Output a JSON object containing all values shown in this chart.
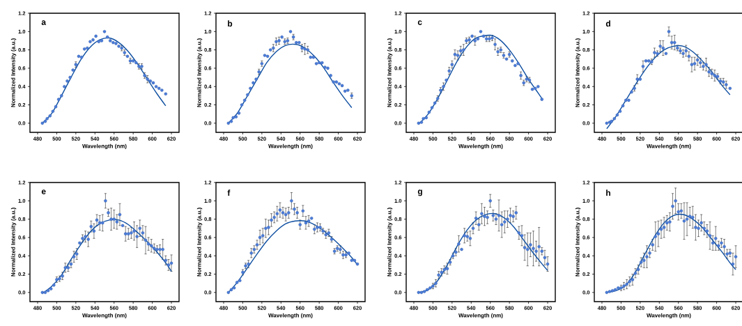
{
  "chart_data": [
    {
      "type": "scatter",
      "title": "a",
      "xlabel": "Wavelength (nm)",
      "ylabel": "Normalized Intensity (a.u.)",
      "marker": "circle",
      "xlim": [
        472,
        628
      ],
      "ylim": [
        -0.1,
        1.2
      ],
      "xticks": [
        480,
        500,
        520,
        540,
        560,
        580,
        600,
        620
      ],
      "yticks": [
        {
          "value": 0,
          "label": "0.0"
        },
        {
          "value": 0.2,
          "label": "0.2"
        },
        {
          "value": 0.4,
          "label": "0.4"
        },
        {
          "value": 0.6,
          "label": "0.6"
        },
        {
          "value": 0.8,
          "label": "0.8"
        },
        {
          "value": 1.0,
          "label": "1.0"
        },
        {
          "value": 1.2,
          "label": "1.2"
        }
      ],
      "x": [
        485,
        488,
        490,
        493,
        496,
        499,
        502,
        505,
        508,
        511,
        514,
        517,
        520,
        523,
        526,
        529,
        532,
        535,
        538,
        541,
        544,
        547,
        550,
        553,
        556,
        559,
        562,
        565,
        568,
        571,
        574,
        577,
        580,
        583,
        586,
        589,
        592,
        595,
        598,
        601,
        604,
        607,
        610,
        614
      ],
      "series": [
        {
          "color": "#4a7bd8",
          "values": [
            0.0,
            0.02,
            0.05,
            0.08,
            0.13,
            0.18,
            0.26,
            0.3,
            0.4,
            0.46,
            0.5,
            0.58,
            0.64,
            0.73,
            0.72,
            0.81,
            0.82,
            0.89,
            0.91,
            0.95,
            0.89,
            0.9,
            1.0,
            0.94,
            0.9,
            0.88,
            0.87,
            0.84,
            0.82,
            0.77,
            0.73,
            0.68,
            0.68,
            0.66,
            0.62,
            0.62,
            0.52,
            0.48,
            0.46,
            0.44,
            0.4,
            0.38,
            0.36,
            0.32
          ],
          "errors": [
            null,
            null,
            null,
            null,
            null,
            null,
            null,
            null,
            null,
            null,
            null,
            null,
            0.03,
            null,
            null,
            null,
            null,
            null,
            null,
            null,
            null,
            null,
            null,
            null,
            null,
            null,
            null,
            null,
            0.03,
            0.03,
            null,
            0.03,
            null,
            null,
            0.03,
            0.03,
            0.03,
            0.04,
            null,
            null,
            null,
            null,
            null,
            null
          ]
        },
        {
          "type": "line",
          "color": "#0d4ea0",
          "marker": "none",
          "x": [
            485,
            495,
            505,
            515,
            525,
            535,
            545,
            555,
            565,
            575,
            585,
            595,
            605,
            614
          ],
          "values": [
            0.0,
            0.11,
            0.3,
            0.5,
            0.69,
            0.83,
            0.91,
            0.93,
            0.88,
            0.78,
            0.64,
            0.48,
            0.32,
            0.19
          ]
        }
      ]
    },
    {
      "type": "scatter",
      "title": "b",
      "xlabel": "Wavelength (nm)",
      "ylabel": "Normalized Intensity (a.u.)",
      "marker": "circle",
      "xlim": [
        472,
        628
      ],
      "ylim": [
        -0.1,
        1.2
      ],
      "xticks": [
        480,
        500,
        520,
        540,
        560,
        580,
        600,
        620
      ],
      "yticks": [
        {
          "value": 0,
          "label": "0.0"
        },
        {
          "value": 0.2,
          "label": "0.2"
        },
        {
          "value": 0.4,
          "label": "0.4"
        },
        {
          "value": 0.6,
          "label": "0.6"
        },
        {
          "value": 0.8,
          "label": "0.8"
        },
        {
          "value": 1.0,
          "label": "1.0"
        },
        {
          "value": 1.2,
          "label": "1.2"
        }
      ],
      "x": [
        485,
        488,
        490,
        493,
        496,
        499,
        502,
        505,
        508,
        511,
        514,
        517,
        520,
        523,
        526,
        529,
        532,
        535,
        538,
        541,
        544,
        547,
        550,
        553,
        556,
        559,
        562,
        565,
        568,
        571,
        574,
        577,
        580,
        583,
        586,
        589,
        592,
        595,
        598,
        601,
        604,
        607,
        610,
        614
      ],
      "series": [
        {
          "color": "#4a7bd8",
          "values": [
            0.0,
            0.02,
            0.06,
            0.07,
            0.11,
            0.2,
            0.25,
            0.31,
            0.38,
            0.44,
            0.48,
            0.56,
            0.65,
            0.74,
            0.73,
            0.8,
            0.82,
            0.89,
            0.9,
            0.94,
            0.89,
            0.9,
            1.0,
            0.94,
            0.88,
            0.88,
            0.82,
            0.81,
            0.8,
            0.72,
            0.72,
            0.65,
            0.66,
            0.66,
            0.61,
            0.6,
            0.52,
            0.45,
            0.45,
            0.43,
            0.41,
            0.35,
            0.36,
            0.3
          ],
          "errors": [
            null,
            null,
            null,
            null,
            null,
            null,
            null,
            null,
            null,
            null,
            null,
            0.03,
            0.03,
            null,
            null,
            null,
            0.04,
            0.04,
            0.04,
            null,
            0.03,
            0.03,
            null,
            0.03,
            null,
            null,
            0.04,
            0.06,
            0.04,
            null,
            null,
            null,
            null,
            null,
            null,
            null,
            null,
            null,
            null,
            null,
            null,
            null,
            null,
            0.03
          ]
        },
        {
          "type": "line",
          "color": "#0d4ea0",
          "marker": "none",
          "x": [
            485,
            495,
            505,
            515,
            525,
            535,
            545,
            556,
            565,
            575,
            585,
            595,
            605,
            614
          ],
          "values": [
            0.0,
            0.12,
            0.3,
            0.48,
            0.66,
            0.78,
            0.85,
            0.86,
            0.82,
            0.73,
            0.6,
            0.44,
            0.29,
            0.17
          ]
        }
      ]
    },
    {
      "type": "scatter",
      "title": "c",
      "xlabel": "Wavelength (nm)",
      "ylabel": "Normalized Intensity (a.u.)",
      "marker": "circle",
      "xlim": [
        472,
        628
      ],
      "ylim": [
        -0.1,
        1.2
      ],
      "xticks": [
        480,
        500,
        520,
        540,
        560,
        580,
        600,
        620
      ],
      "yticks": [
        {
          "value": 0,
          "label": "0.0"
        },
        {
          "value": 0.2,
          "label": "0.2"
        },
        {
          "value": 0.4,
          "label": "0.4"
        },
        {
          "value": 0.6,
          "label": "0.6"
        },
        {
          "value": 0.8,
          "label": "0.8"
        },
        {
          "value": 1.0,
          "label": "1.0"
        },
        {
          "value": 1.2,
          "label": "1.2"
        }
      ],
      "x": [
        485,
        488,
        490,
        493,
        496,
        499,
        502,
        505,
        508,
        511,
        514,
        517,
        520,
        523,
        526,
        529,
        532,
        535,
        538,
        541,
        544,
        547,
        550,
        553,
        556,
        559,
        562,
        565,
        568,
        571,
        574,
        577,
        580,
        583,
        586,
        589,
        592,
        595,
        598,
        601,
        604,
        607,
        610,
        614
      ],
      "series": [
        {
          "color": "#4a7bd8",
          "values": [
            0.0,
            0.01,
            0.05,
            0.06,
            0.12,
            0.17,
            0.22,
            0.27,
            0.36,
            0.4,
            0.47,
            0.57,
            0.64,
            0.75,
            0.74,
            0.79,
            0.8,
            0.9,
            0.91,
            0.95,
            0.9,
            0.92,
            1.0,
            0.95,
            0.92,
            0.92,
            0.93,
            0.86,
            0.78,
            0.8,
            0.74,
            0.7,
            0.75,
            0.68,
            0.63,
            0.65,
            0.52,
            0.44,
            0.48,
            0.47,
            0.37,
            0.38,
            0.4,
            0.26
          ],
          "errors": [
            null,
            null,
            null,
            null,
            null,
            null,
            null,
            0.03,
            0.03,
            0.04,
            null,
            0.04,
            0.04,
            0.05,
            0.05,
            0.05,
            0.06,
            0.03,
            0.03,
            null,
            0.05,
            null,
            null,
            null,
            0.03,
            0.03,
            0.03,
            0.06,
            0.04,
            0.03,
            0.03,
            null,
            0.03,
            null,
            null,
            null,
            0.04,
            0.03,
            0.03,
            0.03,
            null,
            null,
            null,
            null
          ]
        },
        {
          "type": "line",
          "color": "#0d4ea0",
          "marker": "none",
          "x": [
            485,
            495,
            505,
            515,
            525,
            535,
            545,
            560,
            570,
            580,
            590,
            600,
            608,
            614
          ],
          "values": [
            -0.01,
            0.1,
            0.27,
            0.47,
            0.67,
            0.83,
            0.93,
            0.96,
            0.91,
            0.8,
            0.65,
            0.48,
            0.36,
            0.27
          ]
        }
      ]
    },
    {
      "type": "scatter",
      "title": "d",
      "xlabel": "Wavelength (nm)",
      "ylabel": "Normalized Intensity (a.u.)",
      "marker": "circle",
      "xlim": [
        472,
        628
      ],
      "ylim": [
        -0.1,
        1.2
      ],
      "xticks": [
        480,
        500,
        520,
        540,
        560,
        580,
        600,
        620
      ],
      "yticks": [
        {
          "value": 0,
          "label": "0.0"
        },
        {
          "value": 0.2,
          "label": "0.2"
        },
        {
          "value": 0.4,
          "label": "0.4"
        },
        {
          "value": 0.6,
          "label": "0.6"
        },
        {
          "value": 0.8,
          "label": "0.8"
        },
        {
          "value": 1.0,
          "label": "1.0"
        },
        {
          "value": 1.2,
          "label": "1.2"
        }
      ],
      "x": [
        485,
        488,
        490,
        493,
        496,
        499,
        502,
        505,
        508,
        511,
        514,
        517,
        520,
        523,
        526,
        529,
        532,
        535,
        538,
        541,
        544,
        547,
        550,
        553,
        556,
        559,
        562,
        565,
        568,
        571,
        574,
        577,
        580,
        583,
        586,
        589,
        592,
        595,
        598,
        601,
        604,
        607,
        610,
        614
      ],
      "series": [
        {
          "color": "#4a7bd8",
          "values": [
            0.0,
            0.01,
            0.02,
            0.05,
            0.09,
            0.13,
            0.19,
            0.25,
            0.25,
            0.34,
            0.38,
            0.48,
            0.48,
            0.62,
            0.68,
            0.68,
            0.67,
            0.77,
            0.76,
            0.84,
            0.82,
            0.76,
            1.0,
            0.88,
            0.88,
            0.82,
            0.79,
            0.76,
            0.79,
            0.73,
            0.64,
            0.65,
            0.69,
            0.66,
            0.62,
            0.64,
            0.56,
            0.54,
            0.52,
            0.51,
            0.46,
            0.45,
            0.42,
            0.38
          ],
          "errors": [
            null,
            null,
            null,
            null,
            null,
            null,
            null,
            null,
            null,
            null,
            0.03,
            0.05,
            null,
            0.06,
            null,
            null,
            0.03,
            0.05,
            0.03,
            0.06,
            0.08,
            null,
            0.05,
            0.07,
            0.08,
            0.03,
            0.03,
            0.04,
            0.06,
            0.05,
            0.08,
            0.07,
            0.06,
            0.05,
            0.04,
            0.07,
            0.05,
            0.05,
            0.06,
            0.03,
            0.03,
            0.04,
            0.04,
            null
          ]
        },
        {
          "type": "line",
          "color": "#0d4ea0",
          "marker": "none",
          "x": [
            485,
            495,
            505,
            515,
            525,
            535,
            545,
            555,
            565,
            575,
            585,
            595,
            605,
            614
          ],
          "values": [
            -0.06,
            0.08,
            0.25,
            0.42,
            0.58,
            0.71,
            0.8,
            0.84,
            0.84,
            0.78,
            0.68,
            0.56,
            0.42,
            0.31
          ]
        }
      ]
    },
    {
      "type": "scatter",
      "title": "e",
      "xlabel": "Wavelength (nm)",
      "ylabel": "Normalized Intensity (a.u.)",
      "marker": "circle",
      "xlim": [
        472,
        628
      ],
      "ylim": [
        -0.1,
        1.2
      ],
      "xticks": [
        480,
        500,
        520,
        540,
        560,
        580,
        600,
        620
      ],
      "yticks": [
        {
          "value": 0,
          "label": "0.0"
        },
        {
          "value": 0.2,
          "label": "0.2"
        },
        {
          "value": 0.4,
          "label": "0.4"
        },
        {
          "value": 0.6,
          "label": "0.6"
        },
        {
          "value": 0.8,
          "label": "0.8"
        },
        {
          "value": 1.0,
          "label": "1.0"
        },
        {
          "value": 1.2,
          "label": "1.2"
        }
      ],
      "x": [
        485,
        488,
        491,
        494,
        497,
        500,
        503,
        506,
        509,
        512,
        515,
        518,
        521,
        524,
        527,
        530,
        533,
        536,
        539,
        542,
        545,
        548,
        551,
        554,
        557,
        560,
        563,
        566,
        569,
        572,
        575,
        578,
        581,
        584,
        587,
        590,
        593,
        596,
        599,
        602,
        605,
        608,
        611,
        614,
        617,
        620
      ],
      "series": [
        {
          "color": "#4a7bd8",
          "values": [
            0.0,
            0.0,
            0.02,
            0.04,
            0.08,
            0.14,
            0.15,
            0.18,
            0.27,
            0.27,
            0.31,
            0.39,
            0.42,
            0.54,
            0.59,
            0.61,
            0.58,
            0.72,
            0.67,
            0.79,
            0.76,
            0.76,
            1.0,
            0.87,
            0.8,
            0.8,
            0.77,
            0.85,
            0.73,
            0.64,
            0.64,
            0.65,
            0.67,
            0.61,
            0.7,
            0.65,
            0.57,
            0.53,
            0.51,
            0.48,
            0.47,
            0.47,
            0.47,
            0.35,
            0.3,
            0.32
          ],
          "errors": [
            null,
            null,
            null,
            null,
            null,
            0.03,
            0.03,
            0.04,
            0.05,
            0.04,
            0.04,
            0.06,
            0.06,
            null,
            0.04,
            0.06,
            0.08,
            0.06,
            0.08,
            0.06,
            0.08,
            0.09,
            0.08,
            0.04,
            0.12,
            0.1,
            0.08,
            0.12,
            null,
            0.08,
            0.06,
            0.06,
            0.1,
            0.12,
            0.09,
            0.08,
            0.15,
            0.07,
            0.07,
            0.05,
            0.04,
            0.05,
            0.11,
            0.05,
            0.06,
            0.09
          ]
        },
        {
          "type": "line",
          "color": "#0d4ea0",
          "marker": "none",
          "x": [
            485,
            495,
            505,
            515,
            525,
            535,
            545,
            555,
            565,
            575,
            585,
            595,
            605,
            615,
            620
          ],
          "values": [
            -0.01,
            0.07,
            0.19,
            0.36,
            0.52,
            0.66,
            0.75,
            0.79,
            0.79,
            0.74,
            0.65,
            0.55,
            0.44,
            0.31,
            0.23
          ]
        }
      ]
    },
    {
      "type": "scatter",
      "title": "f",
      "xlabel": "Wavelength (nm)",
      "ylabel": "Normalized Intensity (a.u.)",
      "marker": "circle",
      "xlim": [
        472,
        628
      ],
      "ylim": [
        -0.1,
        1.2
      ],
      "xticks": [
        480,
        500,
        520,
        540,
        560,
        580,
        600,
        620
      ],
      "yticks": [
        {
          "value": 0,
          "label": "0.0"
        },
        {
          "value": 0.2,
          "label": "0.2"
        },
        {
          "value": 0.4,
          "label": "0.4"
        },
        {
          "value": 0.6,
          "label": "0.6"
        },
        {
          "value": 0.8,
          "label": "0.8"
        },
        {
          "value": 1.0,
          "label": "1.0"
        },
        {
          "value": 1.2,
          "label": "1.2"
        }
      ],
      "x": [
        485,
        488,
        491,
        494,
        497,
        500,
        503,
        506,
        509,
        512,
        515,
        518,
        521,
        524,
        527,
        530,
        533,
        536,
        539,
        542,
        545,
        548,
        551,
        554,
        557,
        560,
        563,
        566,
        569,
        572,
        575,
        578,
        581,
        584,
        587,
        590,
        593,
        596,
        599,
        602,
        605,
        608,
        611,
        614,
        617,
        620
      ],
      "series": [
        {
          "color": "#4a7bd8",
          "values": [
            0.0,
            0.03,
            0.05,
            0.11,
            0.13,
            0.22,
            0.29,
            0.31,
            0.43,
            0.47,
            0.52,
            0.6,
            0.62,
            0.7,
            0.71,
            0.79,
            0.82,
            0.86,
            0.9,
            0.87,
            0.85,
            0.87,
            1.0,
            0.91,
            0.87,
            0.74,
            0.89,
            0.76,
            0.78,
            0.81,
            0.69,
            0.71,
            0.71,
            0.67,
            0.63,
            0.65,
            0.58,
            0.45,
            0.48,
            0.47,
            0.41,
            0.41,
            0.43,
            0.35,
            0.35,
            0.31
          ],
          "errors": [
            null,
            null,
            null,
            null,
            null,
            0.03,
            0.03,
            0.04,
            0.05,
            0.04,
            0.05,
            0.08,
            0.08,
            0.1,
            0.08,
            0.07,
            0.06,
            0.08,
            0.08,
            0.06,
            0.07,
            0.06,
            0.09,
            0.06,
            0.06,
            0.05,
            0.06,
            0.07,
            0.06,
            null,
            0.05,
            0.05,
            0.04,
            0.03,
            0.04,
            0.04,
            0.03,
            0.03,
            0.03,
            0.04,
            0.04,
            0.03,
            null,
            null,
            null,
            null
          ]
        },
        {
          "type": "line",
          "color": "#0d4ea0",
          "marker": "none",
          "x": [
            485,
            495,
            505,
            515,
            525,
            535,
            545,
            555,
            565,
            575,
            585,
            595,
            605,
            615,
            620
          ],
          "values": [
            0.0,
            0.12,
            0.27,
            0.42,
            0.56,
            0.67,
            0.75,
            0.78,
            0.78,
            0.74,
            0.67,
            0.58,
            0.48,
            0.37,
            0.3
          ]
        }
      ]
    },
    {
      "type": "scatter",
      "title": "g",
      "xlabel": "Wavelength (nm)",
      "ylabel": "Normalized Intensity (a.u.)",
      "marker": "circle",
      "xlim": [
        472,
        628
      ],
      "ylim": [
        -0.1,
        1.2
      ],
      "xticks": [
        480,
        500,
        520,
        540,
        560,
        580,
        600,
        620
      ],
      "yticks": [
        {
          "value": 0,
          "label": "0.0"
        },
        {
          "value": 0.2,
          "label": "0.2"
        },
        {
          "value": 0.4,
          "label": "0.4"
        },
        {
          "value": 0.6,
          "label": "0.6"
        },
        {
          "value": 0.8,
          "label": "0.8"
        },
        {
          "value": 1.0,
          "label": "1.0"
        },
        {
          "value": 1.2,
          "label": "1.2"
        }
      ],
      "x": [
        485,
        488,
        491,
        494,
        497,
        500,
        503,
        506,
        509,
        512,
        515,
        518,
        521,
        524,
        527,
        530,
        533,
        536,
        539,
        542,
        545,
        548,
        551,
        554,
        557,
        560,
        563,
        566,
        569,
        572,
        575,
        578,
        581,
        584,
        587,
        590,
        593,
        596,
        599,
        602,
        605,
        608,
        611,
        614,
        617,
        620
      ],
      "series": [
        {
          "color": "#4a7bd8",
          "values": [
            0.0,
            0.0,
            0.01,
            0.03,
            0.05,
            0.07,
            0.1,
            0.19,
            0.22,
            0.25,
            0.26,
            0.33,
            0.4,
            0.44,
            0.53,
            0.47,
            0.62,
            0.61,
            0.59,
            0.7,
            0.81,
            0.74,
            0.86,
            0.83,
            0.82,
            1.0,
            0.84,
            0.8,
            0.84,
            0.74,
            0.77,
            0.8,
            0.84,
            0.83,
            0.87,
            0.65,
            0.62,
            0.49,
            0.47,
            0.52,
            0.48,
            0.45,
            0.5,
            0.45,
            0.38,
            0.31
          ],
          "errors": [
            null,
            null,
            null,
            null,
            null,
            0.03,
            0.04,
            0.04,
            0.04,
            0.04,
            0.06,
            0.03,
            0.03,
            0.04,
            0.09,
            null,
            0.08,
            0.05,
            0.08,
            0.06,
            0.07,
            0.06,
            0.11,
            0.1,
            0.07,
            0.07,
            0.06,
            0.06,
            0.17,
            0.14,
            0.12,
            0.09,
            0.08,
            0.06,
            0.07,
            0.07,
            0.11,
            0.14,
            0.18,
            0.13,
            0.19,
            0.11,
            0.21,
            0.04,
            0.08,
            0.08
          ]
        },
        {
          "type": "line",
          "color": "#0d4ea0",
          "marker": "none",
          "x": [
            485,
            495,
            505,
            515,
            525,
            535,
            545,
            555,
            565,
            575,
            585,
            595,
            605,
            615,
            620
          ],
          "values": [
            0.0,
            0.03,
            0.13,
            0.3,
            0.5,
            0.67,
            0.79,
            0.85,
            0.86,
            0.81,
            0.71,
            0.57,
            0.43,
            0.3,
            0.24
          ]
        }
      ]
    },
    {
      "type": "scatter",
      "title": "h",
      "xlabel": "Wavelength (nm)",
      "ylabel": "Normalized Intensity (a.u.)",
      "marker": "circle",
      "xlim": [
        472,
        628
      ],
      "ylim": [
        -0.1,
        1.2
      ],
      "xticks": [
        480,
        500,
        520,
        540,
        560,
        580,
        600,
        620
      ],
      "yticks": [
        {
          "value": 0,
          "label": "0.0"
        },
        {
          "value": 0.2,
          "label": "0.2"
        },
        {
          "value": 0.4,
          "label": "0.4"
        },
        {
          "value": 0.6,
          "label": "0.6"
        },
        {
          "value": 0.8,
          "label": "0.8"
        },
        {
          "value": 1.0,
          "label": "1.0"
        },
        {
          "value": 1.2,
          "label": "1.2"
        }
      ],
      "x": [
        485,
        488,
        491,
        494,
        497,
        500,
        503,
        506,
        509,
        512,
        515,
        518,
        521,
        524,
        527,
        530,
        533,
        536,
        539,
        542,
        545,
        548,
        551,
        554,
        557,
        560,
        563,
        566,
        569,
        572,
        575,
        578,
        581,
        584,
        587,
        590,
        593,
        596,
        599,
        602,
        605,
        608,
        611,
        614,
        617,
        620
      ],
      "series": [
        {
          "color": "#4a7bd8",
          "values": [
            0.0,
            0.01,
            0.02,
            0.03,
            0.05,
            0.05,
            0.07,
            0.09,
            0.12,
            0.14,
            0.21,
            0.25,
            0.33,
            0.35,
            0.39,
            0.43,
            0.52,
            0.61,
            0.64,
            0.69,
            0.71,
            0.76,
            0.77,
            0.94,
            1.0,
            0.88,
            0.89,
            0.78,
            0.8,
            0.83,
            0.82,
            0.71,
            0.7,
            0.76,
            0.7,
            0.67,
            0.62,
            0.54,
            0.59,
            0.51,
            0.54,
            0.5,
            0.42,
            0.43,
            0.31,
            0.39
          ],
          "errors": [
            null,
            null,
            null,
            null,
            null,
            0.03,
            0.04,
            0.05,
            0.05,
            0.06,
            0.05,
            0.05,
            0.05,
            0.08,
            0.12,
            0.05,
            0.06,
            0.16,
            0.14,
            0.1,
            0.11,
            0.08,
            0.1,
            0.14,
            0.14,
            0.09,
            0.08,
            0.2,
            0.18,
            0.1,
            0.12,
            0.14,
            0.09,
            0.09,
            0.07,
            0.07,
            0.15,
            0.08,
            0.13,
            0.05,
            0.05,
            0.08,
            0.05,
            0.04,
            0.12,
            0.12
          ]
        },
        {
          "type": "line",
          "color": "#0d4ea0",
          "marker": "none",
          "x": [
            485,
            495,
            505,
            515,
            525,
            535,
            545,
            555,
            565,
            575,
            585,
            595,
            605,
            615,
            620
          ],
          "values": [
            0.0,
            0.02,
            0.08,
            0.22,
            0.42,
            0.61,
            0.76,
            0.84,
            0.85,
            0.8,
            0.71,
            0.58,
            0.45,
            0.31,
            0.25
          ]
        }
      ]
    }
  ]
}
